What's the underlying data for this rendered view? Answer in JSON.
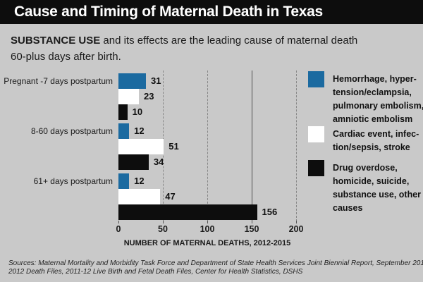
{
  "page": {
    "background": "#c9c9c9"
  },
  "header": {
    "title": "Cause and Timing of Maternal Death in Texas",
    "bar_color": "#0d0d0d",
    "text_color": "#ffffff"
  },
  "subtitle": {
    "emphasis": "SUBSTANCE USE",
    "line1_rest": " and its effects are the leading cause of maternal death",
    "line2": "60-plus days after birth."
  },
  "chart_data": {
    "type": "bar",
    "orientation": "horizontal",
    "title": "Cause and Timing of Maternal Death in Texas",
    "categories": [
      "Pregnant -7 days postpartum",
      "8-60 days postpartum",
      "61+ days postpartum"
    ],
    "series": [
      {
        "name": "Hemorrhage, hypertension/eclampsia, pulmonary embolism, amniotic embolism",
        "color": "#1b6aa0",
        "values": [
          31,
          12,
          12
        ]
      },
      {
        "name": "Cardiac event, infection/sepsis, stroke",
        "color": "#ffffff",
        "values": [
          23,
          51,
          47
        ]
      },
      {
        "name": "Drug overdose, homicide, suicide, substance use, other causes",
        "color": "#0d0d0d",
        "values": [
          10,
          34,
          156
        ]
      }
    ],
    "xlabel": "NUMBER OF MATERNAL DEATHS, 2012-2015",
    "xlim": [
      0,
      200
    ],
    "xticks": [
      0,
      50,
      100,
      150,
      200
    ],
    "gridlines": [
      {
        "x": 50,
        "style": "dashed"
      },
      {
        "x": 100,
        "style": "dashed"
      },
      {
        "x": 150,
        "style": "solid"
      },
      {
        "x": 200,
        "style": "dashed"
      }
    ],
    "grid": "vertical",
    "legend_position": "right"
  },
  "legend": {
    "items": [
      {
        "color": "#1b6aa0",
        "lines": [
          "Hemorrhage, hyper-",
          "tension/eclampsia,",
          "pulmonary embolism,",
          "amniotic embolism"
        ]
      },
      {
        "color": "#ffffff",
        "lines": [
          "Cardiac event, infec-",
          "tion/sepsis, stroke"
        ]
      },
      {
        "color": "#0d0d0d",
        "lines": [
          "Drug overdose,",
          "homicide, suicide,",
          "substance use, other",
          "causes"
        ]
      }
    ]
  },
  "footer": {
    "sources_line1": "Sources: Maternal Mortality and Morbidity Task Force and Department of State Health Services Joint Biennial Report, September 2018;",
    "sources_line2": "2012 Death Files, 2011-12 Live Birth and Fetal Death Files, Center for Health Statistics, DSHS"
  }
}
